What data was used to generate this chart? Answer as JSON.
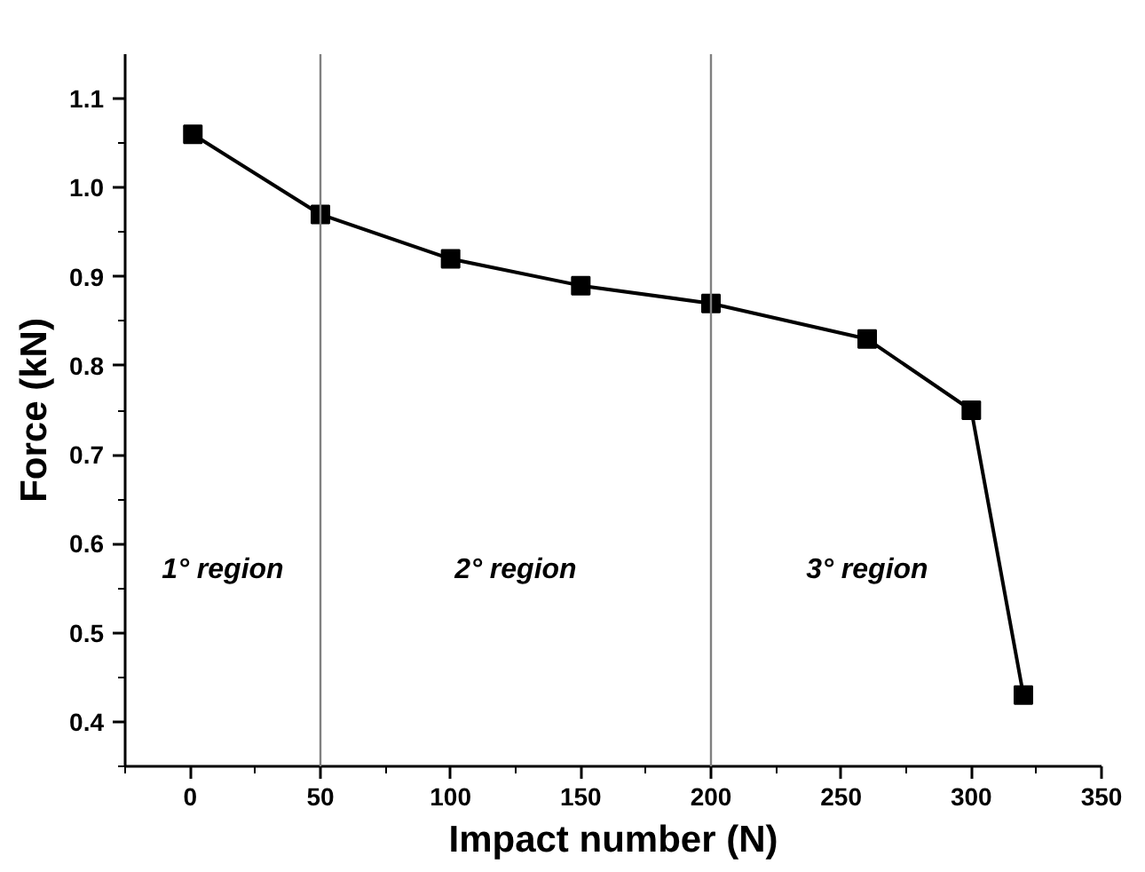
{
  "chart_data": {
    "type": "line",
    "xlabel": "Impact number (N)",
    "ylabel": "Force (kN)",
    "x": [
      1,
      50,
      100,
      150,
      200,
      260,
      300,
      320
    ],
    "series": [
      {
        "color": "#000000",
        "values": [
          1.06,
          0.97,
          0.92,
          0.89,
          0.87,
          0.83,
          0.75,
          0.43
        ]
      }
    ],
    "marker": "square",
    "line_style": "solid",
    "grid": false,
    "xlim": [
      -25,
      350
    ],
    "xticks": [
      0,
      50,
      100,
      150,
      200,
      250,
      300,
      350
    ],
    "ylim": [
      0.35,
      1.15
    ],
    "yticks": [
      0.4,
      0.5,
      0.6,
      0.7,
      0.8,
      0.9,
      {
        "value": 1.0,
        "label": "1.0"
      },
      1.1
    ],
    "ref_lines": [
      {
        "axis": "x",
        "value": 50,
        "color": "#808080"
      },
      {
        "axis": "x",
        "value": 200,
        "color": "#808080"
      }
    ],
    "annotations": [
      "1° region",
      "2° region",
      "3° region"
    ]
  }
}
